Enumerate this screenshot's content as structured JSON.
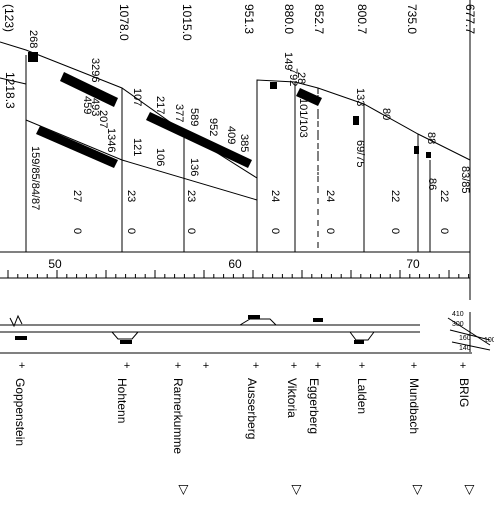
{
  "elevations": [
    "(123)",
    "1218.3",
    "1078.0",
    "1015.0",
    "951.3",
    "880.0",
    "852.7",
    "800.7",
    "735.0",
    "677.7"
  ],
  "left_labels": [
    "268",
    "3296",
    "1346",
    "207",
    "493",
    "459"
  ],
  "figure_labels": [
    "107",
    "121",
    "217",
    "106",
    "377",
    "589",
    "136",
    "952",
    "409",
    "385",
    "149",
    "792",
    "28",
    "101/103",
    "133",
    "69/75",
    "80",
    "88",
    "86",
    "83/85",
    "159/85/84/87",
    "27",
    "0",
    "23",
    "0",
    "23",
    "0",
    "24",
    "0",
    "24",
    "0",
    "22",
    "0",
    "22",
    "0"
  ],
  "km_labels": [
    "50",
    "60",
    "70"
  ],
  "mini_labels": [
    "410",
    "300",
    "160",
    "140",
    "100"
  ],
  "stations": [
    "Goppenstein",
    "Hohtenn",
    "Rarnerkumme",
    "Ausserberg",
    "Viktoria",
    "Eggerberg",
    "Lalden",
    "Mundbach",
    "BRIG"
  ],
  "markers": [
    "▷",
    "▷",
    "▷",
    "▷"
  ]
}
